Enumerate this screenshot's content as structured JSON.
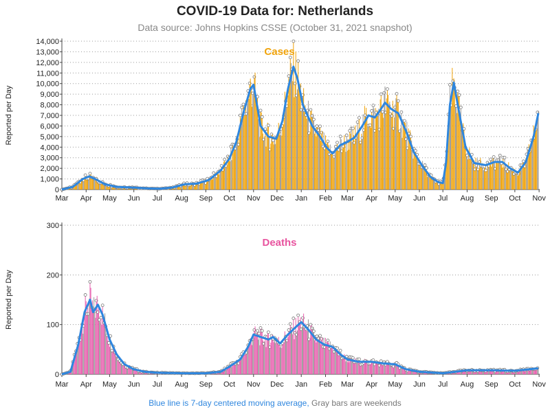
{
  "title": "COVID-19 Data for: Netherlands",
  "subtitle": "Data source: Johns Hopkins CSSE (October 31, 2021 snapshot)",
  "footnote": {
    "blue_part": "Blue line is 7-day centered moving average,",
    "gray_part": "Gray bars are weekends"
  },
  "colors": {
    "cases_bar": "#F0A30A",
    "deaths_bar": "#E85FAE",
    "moving_avg": "#2E86DE",
    "cases_title": "#F0A30A",
    "deaths_title": "#E8549F",
    "weekend_bar": "#999999"
  },
  "chart_data": [
    {
      "type": "bar",
      "title": "Cases",
      "ylabel": "Reported per Day",
      "xlabel": "",
      "ylim": [
        0,
        14000
      ],
      "yticks": [
        0,
        1000,
        2000,
        3000,
        4000,
        5000,
        6000,
        7000,
        8000,
        9000,
        10000,
        11000,
        12000,
        13000,
        14000
      ],
      "ytick_labels": [
        "0",
        "1,000",
        "2,000",
        "3,000",
        "4,000",
        "5,000",
        "6,000",
        "7,000",
        "8,000",
        "9,000",
        "10,000",
        "11,000",
        "12,000",
        "13,000",
        "14,000"
      ],
      "grid": "horizontal dotted",
      "x_tick_labels": [
        "Mar",
        "Apr",
        "May",
        "Jun",
        "Jul",
        "Aug",
        "Sep",
        "Oct",
        "Nov",
        "Dec",
        "Jan",
        "Feb",
        "Mar",
        "Apr",
        "May",
        "Jun",
        "Jul",
        "Aug",
        "Sep",
        "Oct",
        "Nov"
      ],
      "x_start": "2020-03-01",
      "x_end": "2021-10-31",
      "series": [
        {
          "name": "Blue line is 7-day centered moving average",
          "anchors": [
            [
              "2020-03-01",
              0
            ],
            [
              "2020-03-15",
              250
            ],
            [
              "2020-03-28",
              1000
            ],
            [
              "2020-04-05",
              1250
            ],
            [
              "2020-04-15",
              900
            ],
            [
              "2020-04-25",
              500
            ],
            [
              "2020-05-10",
              250
            ],
            [
              "2020-06-01",
              180
            ],
            [
              "2020-06-20",
              100
            ],
            [
              "2020-07-05",
              80
            ],
            [
              "2020-07-20",
              180
            ],
            [
              "2020-08-05",
              500
            ],
            [
              "2020-08-20",
              550
            ],
            [
              "2020-09-05",
              900
            ],
            [
              "2020-09-20",
              1800
            ],
            [
              "2020-10-01",
              2900
            ],
            [
              "2020-10-10",
              4500
            ],
            [
              "2020-10-20",
              7500
            ],
            [
              "2020-10-28",
              9500
            ],
            [
              "2020-11-01",
              9900
            ],
            [
              "2020-11-10",
              6000
            ],
            [
              "2020-11-20",
              5000
            ],
            [
              "2020-11-30",
              4800
            ],
            [
              "2020-12-08",
              6500
            ],
            [
              "2020-12-15",
              9500
            ],
            [
              "2020-12-22",
              11600
            ],
            [
              "2020-12-27",
              10500
            ],
            [
              "2021-01-03",
              8000
            ],
            [
              "2021-01-15",
              6000
            ],
            [
              "2021-01-25",
              5000
            ],
            [
              "2021-02-02",
              4000
            ],
            [
              "2021-02-10",
              3400
            ],
            [
              "2021-02-20",
              4200
            ],
            [
              "2021-03-01",
              4500
            ],
            [
              "2021-03-10",
              4900
            ],
            [
              "2021-03-20",
              6000
            ],
            [
              "2021-03-28",
              7000
            ],
            [
              "2021-04-05",
              6800
            ],
            [
              "2021-04-12",
              7500
            ],
            [
              "2021-04-18",
              8200
            ],
            [
              "2021-04-26",
              7600
            ],
            [
              "2021-05-05",
              7200
            ],
            [
              "2021-05-15",
              5500
            ],
            [
              "2021-05-25",
              3500
            ],
            [
              "2021-06-05",
              2200
            ],
            [
              "2021-06-15",
              1200
            ],
            [
              "2021-06-25",
              700
            ],
            [
              "2021-07-01",
              600
            ],
            [
              "2021-07-05",
              2500
            ],
            [
              "2021-07-10",
              8000
            ],
            [
              "2021-07-15",
              10100
            ],
            [
              "2021-07-20",
              8000
            ],
            [
              "2021-07-30",
              4000
            ],
            [
              "2021-08-10",
              2500
            ],
            [
              "2021-08-25",
              2300
            ],
            [
              "2021-09-05",
              2600
            ],
            [
              "2021-09-15",
              2600
            ],
            [
              "2021-09-25",
              2000
            ],
            [
              "2021-10-05",
              1600
            ],
            [
              "2021-10-15",
              2600
            ],
            [
              "2021-10-25",
              5000
            ],
            [
              "2021-10-31",
              7200
            ]
          ]
        }
      ]
    },
    {
      "type": "bar",
      "title": "Deaths",
      "ylabel": "Reported per Day",
      "xlabel": "",
      "ylim": [
        0,
        300
      ],
      "yticks": [
        0,
        100,
        200,
        300
      ],
      "ytick_labels": [
        "0",
        "100",
        "200",
        "300"
      ],
      "grid": "horizontal dotted",
      "x_tick_labels": [
        "Mar",
        "Apr",
        "May",
        "Jun",
        "Jul",
        "Aug",
        "Sep",
        "Oct",
        "Nov",
        "Dec",
        "Jan",
        "Feb",
        "Mar",
        "Apr",
        "May",
        "Jun",
        "Jul",
        "Aug",
        "Sep",
        "Oct",
        "Nov"
      ],
      "x_start": "2020-03-01",
      "x_end": "2021-10-31",
      "series": [
        {
          "name": "Blue line is 7-day centered moving average",
          "anchors": [
            [
              "2020-03-01",
              0
            ],
            [
              "2020-03-12",
              5
            ],
            [
              "2020-03-22",
              60
            ],
            [
              "2020-03-30",
              125
            ],
            [
              "2020-04-06",
              150
            ],
            [
              "2020-04-10",
              125
            ],
            [
              "2020-04-16",
              140
            ],
            [
              "2020-04-22",
              120
            ],
            [
              "2020-05-01",
              70
            ],
            [
              "2020-05-10",
              40
            ],
            [
              "2020-05-20",
              20
            ],
            [
              "2020-06-01",
              10
            ],
            [
              "2020-06-15",
              5
            ],
            [
              "2020-07-01",
              3
            ],
            [
              "2020-08-01",
              2
            ],
            [
              "2020-09-01",
              2
            ],
            [
              "2020-09-20",
              5
            ],
            [
              "2020-10-01",
              15
            ],
            [
              "2020-10-15",
              30
            ],
            [
              "2020-10-25",
              55
            ],
            [
              "2020-11-01",
              80
            ],
            [
              "2020-11-10",
              75
            ],
            [
              "2020-11-20",
              70
            ],
            [
              "2020-11-26",
              75
            ],
            [
              "2020-12-05",
              62
            ],
            [
              "2020-12-15",
              80
            ],
            [
              "2020-12-25",
              95
            ],
            [
              "2021-01-01",
              105
            ],
            [
              "2021-01-10",
              90
            ],
            [
              "2021-01-20",
              70
            ],
            [
              "2021-01-30",
              60
            ],
            [
              "2021-02-10",
              55
            ],
            [
              "2021-02-20",
              40
            ],
            [
              "2021-03-01",
              30
            ],
            [
              "2021-03-15",
              25
            ],
            [
              "2021-04-01",
              25
            ],
            [
              "2021-04-15",
              22
            ],
            [
              "2021-05-01",
              20
            ],
            [
              "2021-05-15",
              10
            ],
            [
              "2021-06-01",
              5
            ],
            [
              "2021-07-01",
              2
            ],
            [
              "2021-08-01",
              8
            ],
            [
              "2021-09-01",
              8
            ],
            [
              "2021-10-01",
              7
            ],
            [
              "2021-10-20",
              10
            ],
            [
              "2021-10-31",
              12
            ]
          ]
        }
      ]
    }
  ]
}
